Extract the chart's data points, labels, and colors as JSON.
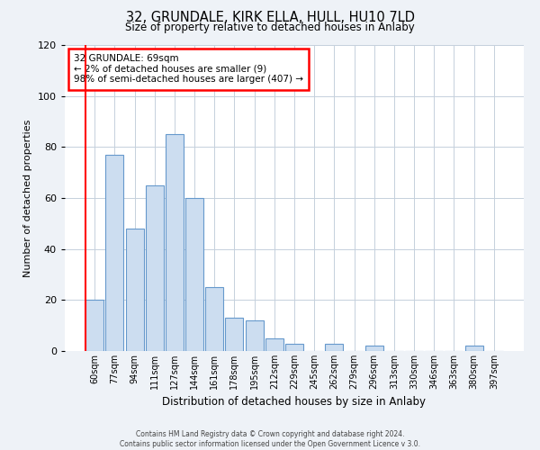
{
  "title": "32, GRUNDALE, KIRK ELLA, HULL, HU10 7LD",
  "subtitle": "Size of property relative to detached houses in Anlaby",
  "xlabel": "Distribution of detached houses by size in Anlaby",
  "ylabel": "Number of detached properties",
  "categories": [
    "60sqm",
    "77sqm",
    "94sqm",
    "111sqm",
    "127sqm",
    "144sqm",
    "161sqm",
    "178sqm",
    "195sqm",
    "212sqm",
    "229sqm",
    "245sqm",
    "262sqm",
    "279sqm",
    "296sqm",
    "313sqm",
    "330sqm",
    "346sqm",
    "363sqm",
    "380sqm",
    "397sqm"
  ],
  "values": [
    20,
    77,
    48,
    65,
    85,
    60,
    25,
    13,
    12,
    5,
    3,
    0,
    3,
    0,
    2,
    0,
    0,
    0,
    0,
    2,
    0
  ],
  "bar_color": "#ccddf0",
  "bar_edge_color": "#6699cc",
  "ylim": [
    0,
    120
  ],
  "yticks": [
    0,
    20,
    40,
    60,
    80,
    100,
    120
  ],
  "annotation_title": "32 GRUNDALE: 69sqm",
  "annotation_line1": "← 2% of detached houses are smaller (9)",
  "annotation_line2": "98% of semi-detached houses are larger (407) →",
  "footer_line1": "Contains HM Land Registry data © Crown copyright and database right 2024.",
  "footer_line2": "Contains public sector information licensed under the Open Government Licence v 3.0.",
  "background_color": "#eef2f7",
  "plot_background_color": "#ffffff",
  "grid_color": "#c5d0dc"
}
